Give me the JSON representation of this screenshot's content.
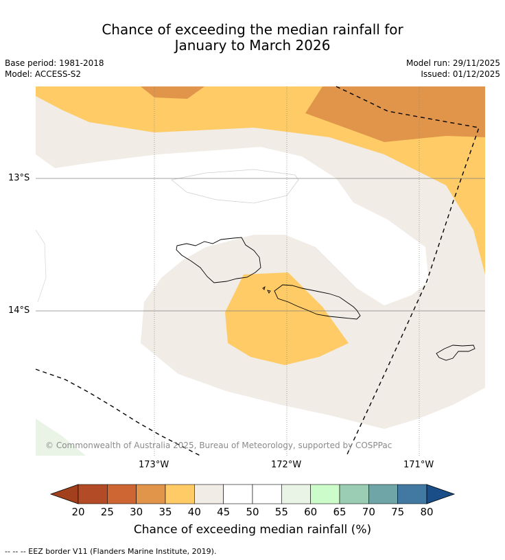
{
  "title": {
    "line1": "Chance of exceeding the median rainfall for",
    "line2": "January to March 2026"
  },
  "meta": {
    "base_period": "Base period: 1981-2018",
    "model": "Model: ACCESS-S2",
    "model_run": "Model run: 29/11/2025",
    "issued": "Issued: 01/12/2025"
  },
  "map": {
    "lat_labels": [
      "13°S",
      "14°S"
    ],
    "lon_labels": [
      "173°W",
      "172°W",
      "171°W"
    ],
    "copyright": "© Commonwealth of Australia 2025, Bureau of Meteorology, supported by COSPPac",
    "colors": {
      "c30_35": "#e0954a",
      "c35_40": "#fecb66",
      "c40_45": "#f1ece6",
      "c45_55": "#ffffff",
      "c55_60": "#e9f4e7"
    }
  },
  "colorbar": {
    "ticks": [
      "20",
      "25",
      "30",
      "35",
      "40",
      "45",
      "50",
      "55",
      "60",
      "65",
      "70",
      "75",
      "80"
    ],
    "colors": [
      "#a2401e",
      "#b24b26",
      "#cd6632",
      "#e0954a",
      "#fecb66",
      "#f1ece6",
      "#ffffff",
      "#ffffff",
      "#e9f4e7",
      "#ccfcca",
      "#9bcdb5",
      "#6fa5a7",
      "#4279a3",
      "#1a4e88"
    ],
    "label": "Chance of exceeding median rainfall (%)"
  },
  "footer": {
    "eez_note": "--  --  -- EEZ border V11 (Flanders Marine Institute, 2019)."
  }
}
